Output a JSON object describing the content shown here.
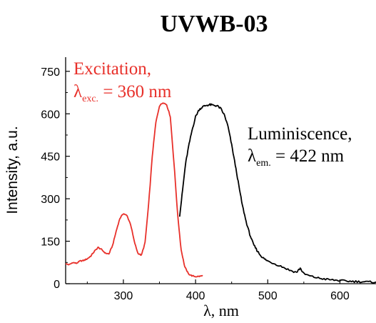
{
  "chart_data": {
    "type": "line",
    "title": "UVWB-03",
    "xlabel": "λ, nm",
    "ylabel": "Intensity, a.u.",
    "xlim": [
      220,
      650
    ],
    "ylim": [
      0,
      800
    ],
    "xticks": [
      300,
      400,
      500,
      600
    ],
    "yticks": [
      0,
      150,
      300,
      450,
      600,
      750
    ],
    "grid": false,
    "series": [
      {
        "name": "Excitation",
        "color": "#e8302a",
        "x": [
          220,
          225,
          230,
          235,
          240,
          245,
          250,
          255,
          260,
          265,
          270,
          275,
          280,
          285,
          290,
          295,
          300,
          305,
          310,
          315,
          320,
          325,
          330,
          335,
          340,
          345,
          350,
          355,
          360,
          365,
          370,
          375,
          380,
          385,
          390,
          395,
          400,
          405,
          410
        ],
        "values": [
          70,
          67,
          75,
          72,
          80,
          82,
          88,
          98,
          115,
          128,
          120,
          108,
          105,
          135,
          185,
          230,
          248,
          240,
          210,
          150,
          108,
          100,
          145,
          280,
          450,
          570,
          628,
          640,
          632,
          590,
          430,
          250,
          120,
          60,
          35,
          28,
          25,
          26,
          28
        ]
      },
      {
        "name": "Luminiscence",
        "color": "#000000",
        "x": [
          378,
          382,
          386,
          390,
          395,
          400,
          405,
          410,
          415,
          420,
          425,
          430,
          435,
          440,
          445,
          450,
          455,
          460,
          465,
          470,
          475,
          480,
          485,
          490,
          495,
          500,
          510,
          520,
          530,
          540,
          545,
          550,
          560,
          570,
          580,
          590,
          600,
          610,
          620,
          630,
          640,
          650
        ],
        "values": [
          240,
          330,
          420,
          480,
          540,
          590,
          615,
          625,
          630,
          632,
          630,
          628,
          618,
          595,
          555,
          490,
          420,
          345,
          275,
          220,
          175,
          140,
          118,
          100,
          88,
          80,
          70,
          60,
          48,
          40,
          55,
          35,
          26,
          20,
          16,
          13,
          11,
          9,
          8,
          7,
          6,
          6
        ]
      }
    ],
    "annotations": [
      {
        "name": "excitation-label",
        "line1": "Excitation,",
        "symbol": "λ",
        "sub": "exc.",
        "rest": " = 360 nm",
        "color": "#e8302a"
      },
      {
        "name": "luminiscence-label",
        "line1": "Luminiscence,",
        "symbol": "λ",
        "sub": "em.",
        "rest": " = 422 nm",
        "color": "#000000"
      }
    ]
  }
}
